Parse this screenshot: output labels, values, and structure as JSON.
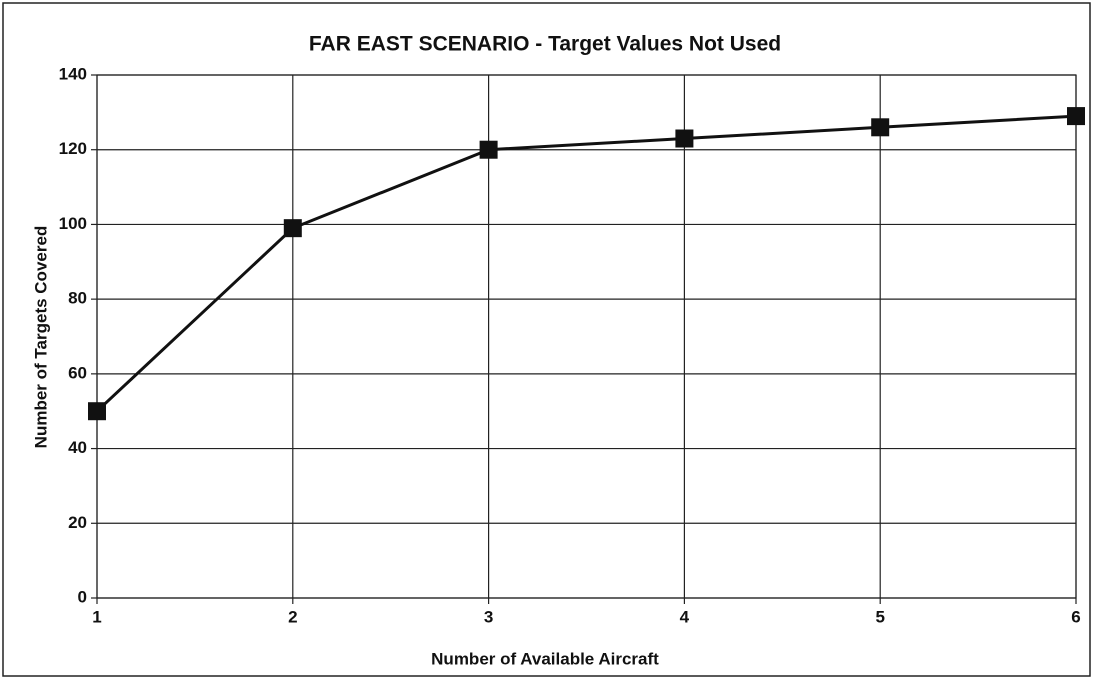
{
  "chart_data": {
    "type": "line",
    "title": "FAR EAST SCENARIO - Target Values Not Used",
    "xlabel": "Number of Available Aircraft",
    "ylabel": "Number of Targets Covered",
    "x": [
      1,
      2,
      3,
      4,
      5,
      6
    ],
    "values": [
      50,
      99,
      120,
      123,
      126,
      129
    ],
    "color": "#111111",
    "xlim": [
      1,
      6
    ],
    "xticks": [
      1,
      2,
      3,
      4,
      5,
      6
    ],
    "ylim": [
      0,
      140
    ],
    "yticks": [
      0,
      20,
      40,
      60,
      80,
      100,
      120,
      140
    ],
    "grid": true
  }
}
